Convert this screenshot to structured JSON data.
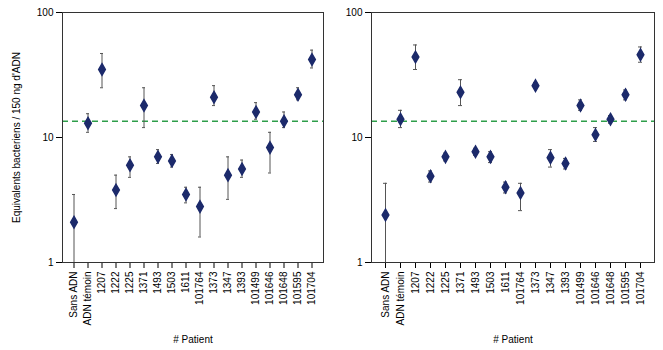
{
  "chart_data": [
    {
      "type": "scatter",
      "y_label": "Equivalents bacteriens / 150 ng d'ADN",
      "x_label": "# Patient",
      "categories": [
        "Sans ADN",
        "ADN témoin",
        "1207",
        "1222",
        "1225",
        "1371",
        "1493",
        "1503",
        "1611",
        "101764",
        "1373",
        "1347",
        "1393",
        "101499",
        "101646",
        "101648",
        "101595",
        "101704"
      ],
      "values": [
        2.1,
        13,
        35,
        3.8,
        6,
        18,
        7,
        6.5,
        3.5,
        2.8,
        21,
        5,
        5.6,
        16,
        8.3,
        13.5,
        22,
        42
      ],
      "error_low": [
        1.0,
        11,
        25,
        2.7,
        4.8,
        12,
        6.2,
        5.8,
        3,
        1.6,
        18,
        3.2,
        4.8,
        14,
        5.2,
        12,
        20,
        36
      ],
      "error_high": [
        3.5,
        15.5,
        47,
        5,
        7,
        25,
        8,
        7.3,
        4,
        4,
        26,
        7,
        6.6,
        19,
        11,
        16,
        25,
        50
      ],
      "color": "#1c2a6b",
      "marker": "diamond",
      "reference_line": {
        "value": 13.5,
        "color": "#2e9e4a",
        "line_style": "dashed"
      },
      "log": "y",
      "ylim": [
        1,
        100
      ],
      "yticks": [
        1,
        10,
        100
      ]
    },
    {
      "type": "scatter",
      "x_label": "# Patient",
      "categories": [
        "Sans ADN",
        "ADN témoin",
        "1207",
        "1222",
        "1225",
        "1371",
        "1493",
        "1503",
        "1611",
        "101764",
        "1373",
        "1347",
        "1393",
        "101499",
        "101646",
        "101648",
        "101595",
        "101704"
      ],
      "values": [
        2.4,
        14,
        44,
        4.9,
        7,
        23,
        7.7,
        7,
        4,
        3.6,
        26,
        6.9,
        6.2,
        18,
        10.5,
        14,
        22,
        46
      ],
      "error_low": [
        1.0,
        12,
        35,
        4.4,
        6.5,
        18,
        7.2,
        6.3,
        3.6,
        2.6,
        25,
        5.8,
        5.6,
        16.5,
        9.3,
        13,
        20,
        40
      ],
      "error_high": [
        4.3,
        16.5,
        55,
        5.4,
        7.5,
        29,
        8.2,
        7.7,
        4.4,
        4.3,
        27.5,
        8,
        6.8,
        20,
        12,
        15,
        24,
        53
      ],
      "color": "#1c2a6b",
      "marker": "diamond",
      "reference_line": {
        "value": 13.5,
        "color": "#2e9e4a",
        "line_style": "dashed"
      },
      "log": "y",
      "ylim": [
        1,
        100
      ],
      "yticks": [
        1,
        10,
        100
      ]
    }
  ]
}
